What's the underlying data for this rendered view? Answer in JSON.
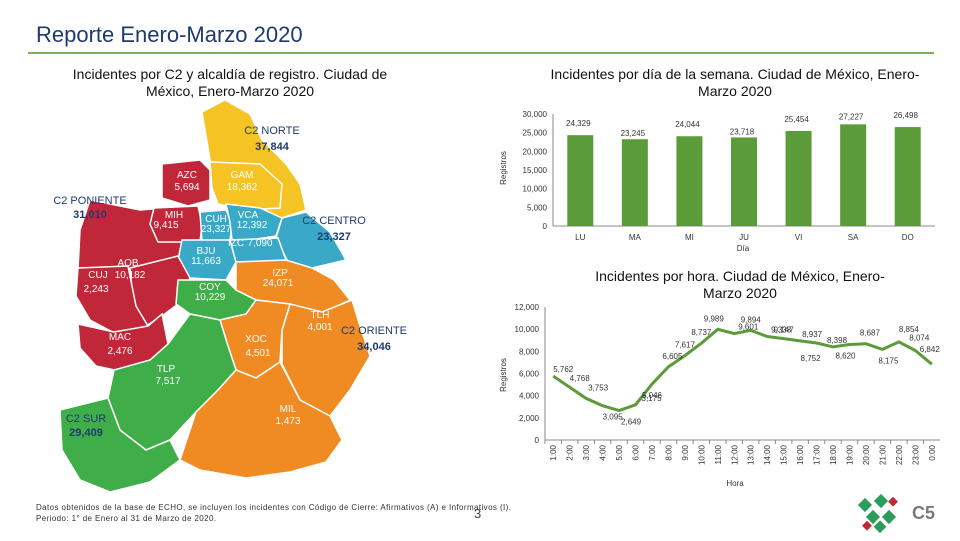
{
  "header": {
    "title": "Reporte Enero-Marzo 2020"
  },
  "map_section": {
    "title": "Incidentes por C2 y alcaldía de registro. Ciudad de México, Enero-Marzo 2020",
    "regions": [
      {
        "name": "C2 NORTE",
        "value": "37,844",
        "color": "#f6c325"
      },
      {
        "name": "C2 PONIENTE",
        "value": "31,010",
        "color": "#c0283a"
      },
      {
        "name": "C2 CENTRO",
        "value": "23,327",
        "color": "#3aa9c8"
      },
      {
        "name": "C2 ORIENTE",
        "value": "34,046",
        "color": "#f08a22"
      },
      {
        "name": "C2 SUR",
        "value": "29,409",
        "color": "#3fae49"
      }
    ],
    "alcaldias": [
      {
        "code": "AZC",
        "value": "5,694"
      },
      {
        "code": "GAM",
        "value": "18,362"
      },
      {
        "code": "MIH",
        "value": "9,415"
      },
      {
        "code": "CUH",
        "value": "23,327"
      },
      {
        "code": "VCA",
        "value": "12,392"
      },
      {
        "code": "BJU",
        "value": "11,663"
      },
      {
        "code": "IZC",
        "value": "7,090"
      },
      {
        "code": "AOB",
        "value": "10,182"
      },
      {
        "code": "CUJ",
        "value": "2,243"
      },
      {
        "code": "COY",
        "value": "10,229"
      },
      {
        "code": "IZP",
        "value": "24,071"
      },
      {
        "code": "TLH",
        "value": "4,001"
      },
      {
        "code": "MAC",
        "value": "2,476"
      },
      {
        "code": "XOC",
        "value": "4,501"
      },
      {
        "code": "TLP",
        "value": "7,517"
      },
      {
        "code": "MIL",
        "value": "1,473"
      }
    ]
  },
  "chart_data": [
    {
      "type": "bar",
      "title": "Incidentes por día de la semana. Ciudad de México, Enero-Marzo 2020",
      "categories": [
        "LU",
        "MA",
        "MI",
        "JU",
        "VI",
        "SA",
        "DO"
      ],
      "values": [
        24329,
        23245,
        24044,
        23718,
        25454,
        27227,
        26498
      ],
      "value_labels": [
        "24,329",
        "23,245",
        "24,044",
        "23,718",
        "25,454",
        "27,227",
        "26,498"
      ],
      "xlabel": "Día",
      "ylabel": "Registros",
      "ylim": [
        0,
        30000
      ],
      "yticks": [
        "0",
        "5,000",
        "10,000",
        "15,000",
        "20,000",
        "25,000",
        "30,000"
      ],
      "bar_color": "#5b9b3a",
      "grid": false
    },
    {
      "type": "line",
      "title": "Incidentes por hora. Ciudad de México, Enero-Marzo 2020",
      "categories": [
        "1:00",
        "2:00",
        "3:00",
        "4:00",
        "5:00",
        "6:00",
        "7:00",
        "8:00",
        "9:00",
        "10:00",
        "11:00",
        "12:00",
        "13:00",
        "14:00",
        "15:00",
        "16:00",
        "17:00",
        "18:00",
        "19:00",
        "20:00",
        "21:00",
        "22:00",
        "23:00",
        "0:00"
      ],
      "values": [
        5762,
        4768,
        3753,
        3095,
        2649,
        3175,
        5046,
        6605,
        7617,
        8737,
        9989,
        9601,
        9894,
        9338,
        9147,
        8937,
        8752,
        8398,
        8620,
        8687,
        8175,
        8854,
        8074,
        6842
      ],
      "value_labels": [
        "5,762",
        "4,768",
        "3,753",
        "3,095",
        "2,649",
        "3,175",
        "5,046",
        "6,605",
        "7,617",
        "8,737",
        "9,989",
        "9,601",
        "9,894",
        "9,338",
        "9,147",
        "8,937",
        "8,752",
        "8,398",
        "8,620",
        "8,687",
        "8,175",
        "8,854",
        "8,074",
        "6,842"
      ],
      "xlabel": "Hora",
      "ylabel": "Registros",
      "ylim": [
        0,
        12000
      ],
      "yticks": [
        "0",
        "2,000",
        "4,000",
        "6,000",
        "8,000",
        "10,000",
        "12,000"
      ],
      "line_color": "#5b9b3a",
      "grid": false
    }
  ],
  "footer": {
    "note_line1": "Datos obtenidos de la base de ECHO, se incluyen los incidentes con Código de Cierre: Afirmativos (A) e Informativos (I).",
    "note_line2": "Periodo: 1° de Enero al 31 de Marzo de 2020.",
    "page": "3",
    "logo_text": "C5"
  }
}
